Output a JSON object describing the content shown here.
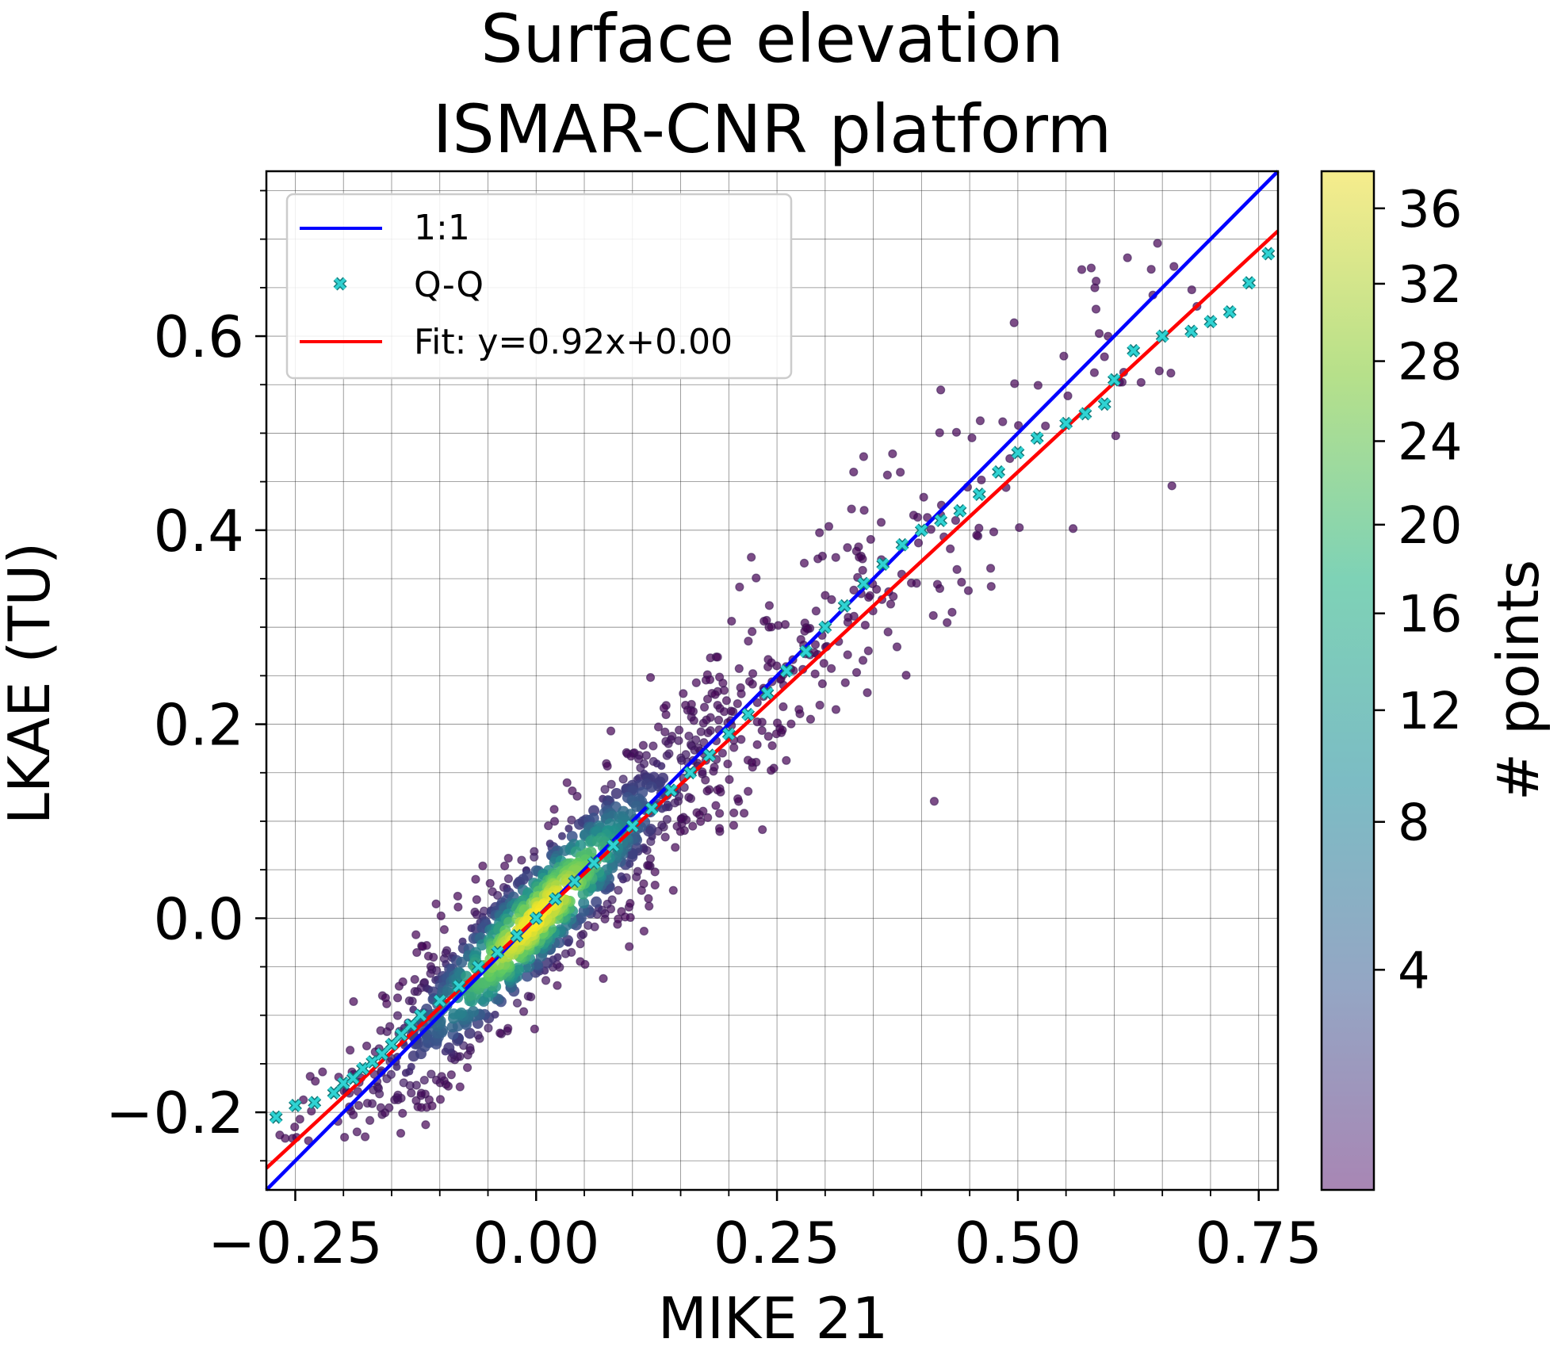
{
  "chart_data": {
    "type": "scatter",
    "title": "Surface elevation\nISMAR-CNR platform",
    "title_lines": [
      "Surface elevation",
      "ISMAR-CNR platform"
    ],
    "xlabel": "MIKE 21",
    "ylabel": "LKAE (TU)",
    "xlim": [
      -0.28,
      0.77
    ],
    "ylim": [
      -0.28,
      0.77
    ],
    "x_ticks": [
      -0.25,
      0.0,
      0.25,
      0.5,
      0.75
    ],
    "x_tick_labels": [
      "−0.25",
      "0.00",
      "0.25",
      "0.50",
      "0.75"
    ],
    "y_ticks": [
      -0.2,
      0.0,
      0.2,
      0.4,
      0.6
    ],
    "y_tick_labels": [
      "−0.2",
      "0.0",
      "0.2",
      "0.4",
      "0.6"
    ],
    "grid": true,
    "legend": {
      "position": "top-left",
      "entries": [
        {
          "label": "1:1",
          "kind": "line",
          "color": "#0000ff"
        },
        {
          "label": "Q-Q",
          "kind": "marker",
          "color": "#20c0c0"
        },
        {
          "label": "Fit: y=0.92x+0.00",
          "kind": "line",
          "color": "#ff0000"
        }
      ]
    },
    "lines": [
      {
        "name": "1:1",
        "slope": 1.0,
        "intercept": 0.0,
        "color": "#0000ff"
      },
      {
        "name": "Fit",
        "slope": 0.92,
        "intercept": 0.0,
        "color": "#ff0000"
      }
    ],
    "qq": {
      "x": [
        -0.27,
        -0.25,
        -0.23,
        -0.21,
        -0.2,
        -0.19,
        -0.18,
        -0.17,
        -0.16,
        -0.15,
        -0.14,
        -0.13,
        -0.12,
        -0.1,
        -0.08,
        -0.06,
        -0.04,
        -0.02,
        0.0,
        0.02,
        0.04,
        0.06,
        0.08,
        0.1,
        0.12,
        0.14,
        0.16,
        0.18,
        0.2,
        0.22,
        0.24,
        0.26,
        0.28,
        0.3,
        0.32,
        0.34,
        0.36,
        0.38,
        0.4,
        0.42,
        0.44,
        0.46,
        0.48,
        0.5,
        0.52,
        0.55,
        0.57,
        0.59,
        0.6,
        0.62,
        0.65,
        0.68,
        0.7,
        0.72,
        0.74,
        0.76
      ],
      "y": [
        -0.205,
        -0.193,
        -0.19,
        -0.18,
        -0.17,
        -0.165,
        -0.155,
        -0.148,
        -0.14,
        -0.13,
        -0.12,
        -0.11,
        -0.1,
        -0.085,
        -0.07,
        -0.05,
        -0.035,
        -0.018,
        0.0,
        0.02,
        0.038,
        0.057,
        0.075,
        0.095,
        0.113,
        0.132,
        0.15,
        0.168,
        0.19,
        0.21,
        0.232,
        0.255,
        0.275,
        0.3,
        0.322,
        0.345,
        0.365,
        0.385,
        0.4,
        0.41,
        0.42,
        0.437,
        0.46,
        0.48,
        0.495,
        0.51,
        0.52,
        0.53,
        0.555,
        0.585,
        0.6,
        0.605,
        0.615,
        0.625,
        0.655,
        0.685
      ]
    },
    "density_scatter": {
      "description_values": "points concentrated along y≈x, densest near (0,0), sparser toward extremes",
      "x_range": [
        -0.27,
        0.76
      ],
      "spread": 0.035,
      "n_points": 1400
    },
    "colorbar": {
      "label": "# points",
      "ticks": [
        4,
        8,
        12,
        16,
        20,
        24,
        28,
        32,
        36
      ],
      "tick_labels": [
        "4",
        "8",
        "12",
        "16",
        "20",
        "24",
        "28",
        "32",
        "36"
      ],
      "range": [
        1,
        38
      ],
      "colormap": "viridis"
    }
  }
}
